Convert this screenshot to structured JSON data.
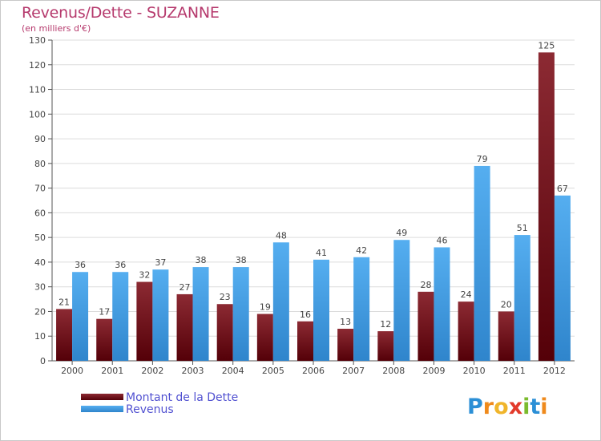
{
  "header": {
    "title": "Revenus/Dette - SUZANNE",
    "subtitle": "(en milliers d'€)"
  },
  "chart_data": {
    "type": "bar",
    "title": "Revenus/Dette - SUZANNE",
    "ylabel": "(en milliers d'€)",
    "xlabel": "",
    "ylim": [
      0,
      130
    ],
    "ytick_step": 10,
    "grid": "horizontal",
    "categories": [
      "2000",
      "2001",
      "2002",
      "2003",
      "2004",
      "2005",
      "2006",
      "2007",
      "2008",
      "2009",
      "2010",
      "2011",
      "2012"
    ],
    "series": [
      {
        "name": "Montant de la Dette",
        "color": "#7a1520",
        "values": [
          21,
          17,
          32,
          27,
          23,
          19,
          16,
          13,
          12,
          28,
          24,
          20,
          125
        ]
      },
      {
        "name": "Revenus",
        "color": "#3f9ee2",
        "values": [
          36,
          36,
          37,
          38,
          38,
          48,
          41,
          42,
          49,
          46,
          79,
          51,
          67
        ]
      }
    ],
    "legend_position": "bottom-left"
  },
  "branding": {
    "logo_text": "Proxiti"
  }
}
